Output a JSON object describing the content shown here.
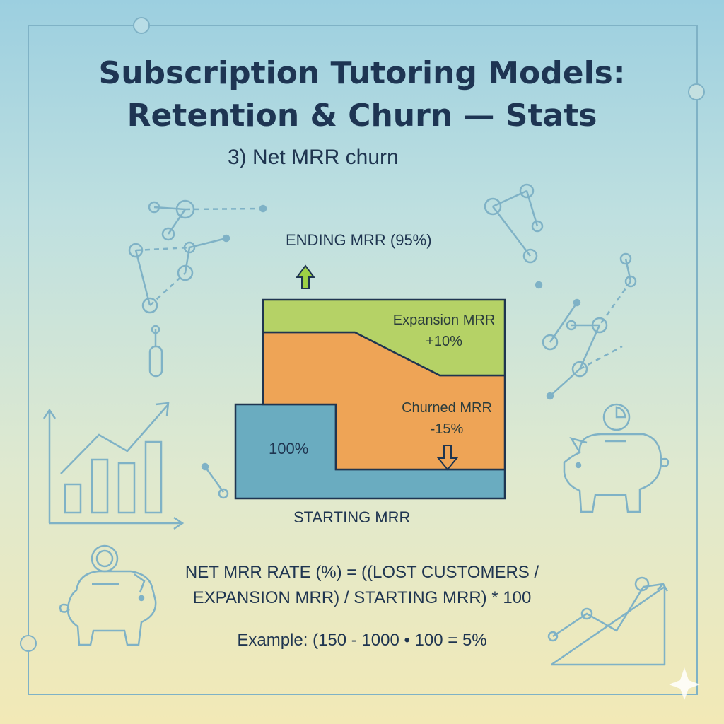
{
  "title": {
    "line1": "Subscription Tutoring Models:",
    "line2": "Retention & Churn — Stats"
  },
  "subtitle": "3) Net MRR churn",
  "diagram": {
    "ending_label": "ENDING MRR (95%)",
    "starting_label": "STARTING MRR",
    "base_label": "100%",
    "expansion_label": "Expansion MRR",
    "expansion_value": "+10%",
    "churned_label": "Churned MRR",
    "churned_value": "-15%",
    "colors": {
      "base": "#6aacc0",
      "churned": "#eea456",
      "expansion": "#b5d266",
      "outline": "#1f3550",
      "up_arrow": "#9dd045"
    }
  },
  "formula": {
    "line1": "NET MRR RATE (%) = ((LOST CUSTOMERS /",
    "line2": "EXPANSION MRR) / STARTING MRR) * 100"
  },
  "example": "Example: (150 - 1000 • 100 = 5%",
  "decorations": [
    "network-graph-icon",
    "bar-chart-trend-icon",
    "piggy-bank-icon",
    "line-chart-icon",
    "sparkle-icon"
  ]
}
